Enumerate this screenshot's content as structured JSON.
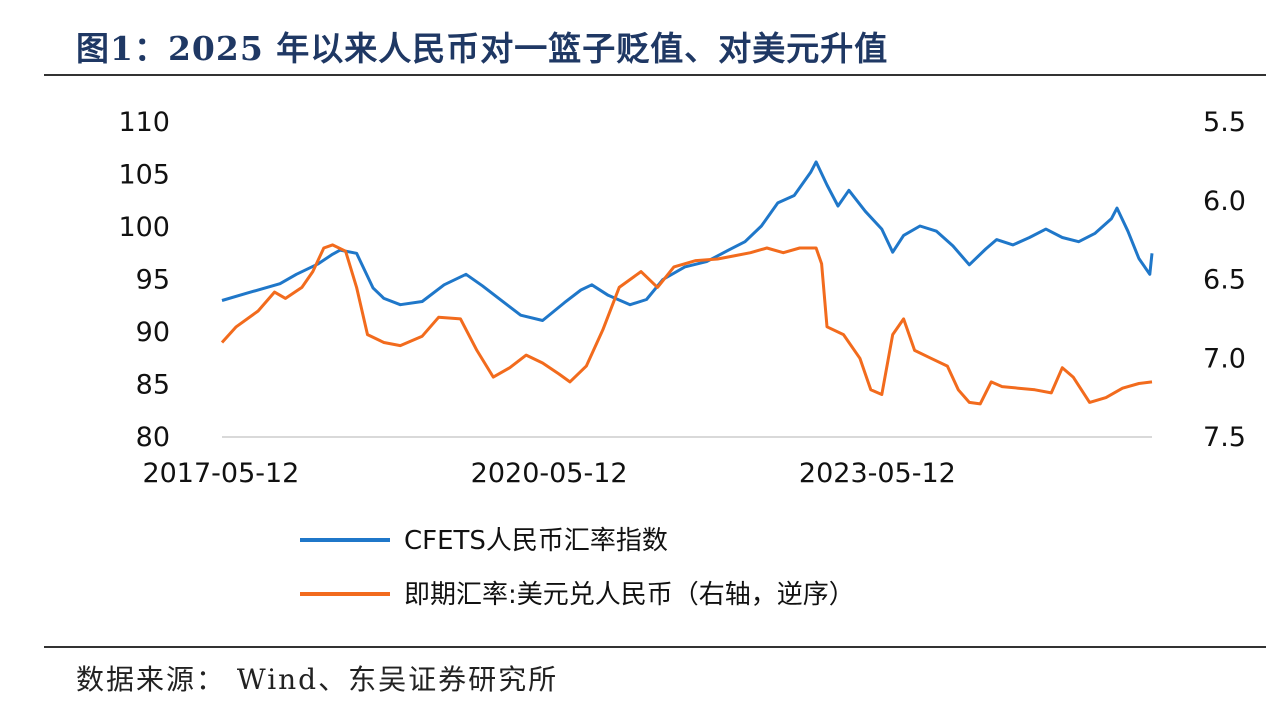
{
  "title": "图1：2025 年以来人民币对一篮子贬值、对美元升值",
  "source": "数据来源： Wind、东吴证券研究所",
  "chart_data": {
    "type": "line",
    "x_tick_labels": [
      "2017-05-12",
      "2020-05-12",
      "2023-05-12"
    ],
    "left_axis": {
      "ylim": [
        80,
        110
      ],
      "ticks": [
        "80",
        "85",
        "90",
        "95",
        "100",
        "105",
        "110"
      ]
    },
    "right_axis": {
      "ylim": [
        5.5,
        7.5
      ],
      "inverted": true,
      "ticks": [
        "5.5",
        "6.0",
        "6.5",
        "7.0",
        "7.5"
      ]
    },
    "xlim": [
      2017.37,
      2025.87
    ],
    "grid": false,
    "legend_position": "bottom",
    "series": [
      {
        "name": "CFETS人民币汇率指数",
        "axis": "left",
        "color": "#1f77c9",
        "points": [
          [
            2017.37,
            93
          ],
          [
            2017.6,
            93.7
          ],
          [
            2017.9,
            94.6
          ],
          [
            2018.05,
            95.5
          ],
          [
            2018.25,
            96.5
          ],
          [
            2018.38,
            97.4
          ],
          [
            2018.45,
            97.8
          ],
          [
            2018.6,
            97.5
          ],
          [
            2018.75,
            94.2
          ],
          [
            2018.85,
            93.2
          ],
          [
            2019.0,
            92.6
          ],
          [
            2019.2,
            92.9
          ],
          [
            2019.4,
            94.5
          ],
          [
            2019.6,
            95.5
          ],
          [
            2019.75,
            94.4
          ],
          [
            2019.9,
            93.2
          ],
          [
            2020.1,
            91.6
          ],
          [
            2020.3,
            91.1
          ],
          [
            2020.5,
            92.8
          ],
          [
            2020.65,
            94.0
          ],
          [
            2020.75,
            94.5
          ],
          [
            2020.9,
            93.5
          ],
          [
            2021.1,
            92.6
          ],
          [
            2021.25,
            93.1
          ],
          [
            2021.4,
            95.0
          ],
          [
            2021.6,
            96.2
          ],
          [
            2021.8,
            96.7
          ],
          [
            2022.0,
            97.8
          ],
          [
            2022.15,
            98.6
          ],
          [
            2022.3,
            100.1
          ],
          [
            2022.45,
            102.3
          ],
          [
            2022.6,
            103.0
          ],
          [
            2022.75,
            105.2
          ],
          [
            2022.8,
            106.2
          ],
          [
            2022.9,
            104.0
          ],
          [
            2023.0,
            102.0
          ],
          [
            2023.1,
            103.5
          ],
          [
            2023.25,
            101.5
          ],
          [
            2023.4,
            99.8
          ],
          [
            2023.5,
            97.6
          ],
          [
            2023.6,
            99.2
          ],
          [
            2023.75,
            100.1
          ],
          [
            2023.9,
            99.6
          ],
          [
            2024.05,
            98.2
          ],
          [
            2024.2,
            96.4
          ],
          [
            2024.35,
            97.9
          ],
          [
            2024.45,
            98.8
          ],
          [
            2024.6,
            98.3
          ],
          [
            2024.75,
            99.0
          ],
          [
            2024.9,
            99.8
          ],
          [
            2025.05,
            99.0
          ],
          [
            2025.2,
            98.6
          ],
          [
            2025.35,
            99.4
          ],
          [
            2025.5,
            100.8
          ],
          [
            2025.55,
            101.8
          ],
          [
            2025.65,
            99.6
          ],
          [
            2025.75,
            97.0
          ],
          [
            2025.85,
            95.5
          ],
          [
            2025.87,
            97.5
          ]
        ]
      },
      {
        "name": "即期汇率:美元兑人民币（右轴，逆序）",
        "axis": "right",
        "color": "#f26b1d",
        "points": [
          [
            2017.37,
            6.9
          ],
          [
            2017.5,
            6.8
          ],
          [
            2017.7,
            6.7
          ],
          [
            2017.85,
            6.58
          ],
          [
            2017.95,
            6.62
          ],
          [
            2018.1,
            6.55
          ],
          [
            2018.2,
            6.45
          ],
          [
            2018.3,
            6.3
          ],
          [
            2018.38,
            6.28
          ],
          [
            2018.5,
            6.32
          ],
          [
            2018.6,
            6.55
          ],
          [
            2018.7,
            6.85
          ],
          [
            2018.85,
            6.9
          ],
          [
            2019.0,
            6.92
          ],
          [
            2019.2,
            6.86
          ],
          [
            2019.35,
            6.74
          ],
          [
            2019.55,
            6.75
          ],
          [
            2019.7,
            6.95
          ],
          [
            2019.85,
            7.12
          ],
          [
            2020.0,
            7.06
          ],
          [
            2020.15,
            6.98
          ],
          [
            2020.3,
            7.03
          ],
          [
            2020.45,
            7.1
          ],
          [
            2020.55,
            7.15
          ],
          [
            2020.7,
            7.05
          ],
          [
            2020.85,
            6.82
          ],
          [
            2021.0,
            6.55
          ],
          [
            2021.2,
            6.45
          ],
          [
            2021.35,
            6.55
          ],
          [
            2021.5,
            6.42
          ],
          [
            2021.7,
            6.38
          ],
          [
            2021.9,
            6.37
          ],
          [
            2022.05,
            6.35
          ],
          [
            2022.2,
            6.33
          ],
          [
            2022.35,
            6.3
          ],
          [
            2022.5,
            6.33
          ],
          [
            2022.65,
            6.3
          ],
          [
            2022.8,
            6.3
          ],
          [
            2022.85,
            6.4
          ],
          [
            2022.9,
            6.8
          ],
          [
            2023.05,
            6.85
          ],
          [
            2023.2,
            7.0
          ],
          [
            2023.3,
            7.2
          ],
          [
            2023.4,
            7.23
          ],
          [
            2023.5,
            6.85
          ],
          [
            2023.6,
            6.75
          ],
          [
            2023.7,
            6.95
          ],
          [
            2023.85,
            7.0
          ],
          [
            2024.0,
            7.05
          ],
          [
            2024.1,
            7.2
          ],
          [
            2024.2,
            7.28
          ],
          [
            2024.3,
            7.29
          ],
          [
            2024.4,
            7.15
          ],
          [
            2024.5,
            7.18
          ],
          [
            2024.65,
            7.19
          ],
          [
            2024.8,
            7.2
          ],
          [
            2024.95,
            7.22
          ],
          [
            2025.05,
            7.06
          ],
          [
            2025.15,
            7.12
          ],
          [
            2025.3,
            7.28
          ],
          [
            2025.45,
            7.25
          ],
          [
            2025.6,
            7.19
          ],
          [
            2025.75,
            7.16
          ],
          [
            2025.87,
            7.15
          ]
        ]
      }
    ]
  }
}
